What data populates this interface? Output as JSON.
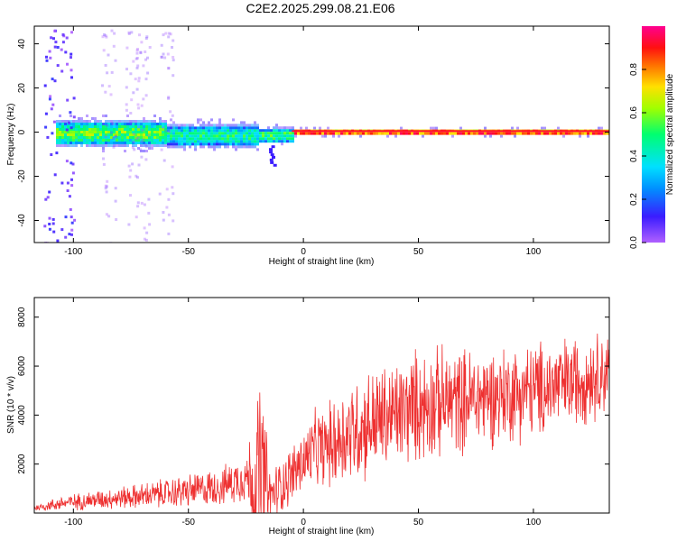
{
  "title": "C2E2.2025.299.08.21.E06",
  "chart_data": [
    {
      "type": "heatmap",
      "xlabel": "Height of straight line (km)",
      "ylabel": "Frequency (Hz)",
      "xlim": [
        -117,
        133
      ],
      "ylim": [
        -50,
        48
      ],
      "xticks": [
        -100,
        -50,
        0,
        50,
        100
      ],
      "yticks": [
        -40,
        -20,
        0,
        20,
        40
      ],
      "colorbar": {
        "label": "Normalized spectral amplitude",
        "range": [
          0,
          1
        ],
        "ticks": [
          "0.0",
          "0.2",
          "0.4",
          "0.6",
          "0.8"
        ],
        "colors": [
          "#a040ff",
          "#3020ff",
          "#00c8ff",
          "#00ff60",
          "#c8ff00",
          "#ffd000",
          "#ff4000",
          "#ff0080"
        ]
      },
      "band": {
        "segments": [
          {
            "x": [
              -108,
              -60
            ],
            "center": 0,
            "halfwidth": 5,
            "peak": 0.55
          },
          {
            "x": [
              -60,
              -20
            ],
            "center": -1,
            "halfwidth": 4.5,
            "peak": 0.45
          },
          {
            "x": [
              -20,
              -5
            ],
            "center": -1,
            "halfwidth": 3,
            "peak": 0.5
          },
          {
            "x": [
              -5,
              133
            ],
            "center": 0.5,
            "halfwidth": 1.2,
            "peak": 0.95
          }
        ],
        "noise_columns_x": [
          -110,
          -103,
          -85,
          -75,
          -70,
          -60
        ]
      }
    },
    {
      "type": "line",
      "xlabel": "Height of straight line (km)",
      "ylabel": "SNR (10 * v/v)",
      "xlim": [
        -117,
        133
      ],
      "ylim": [
        0,
        8800
      ],
      "xticks": [
        -100,
        -50,
        0,
        50,
        100
      ],
      "yticks": [
        2000,
        4000,
        6000,
        8000
      ],
      "series": [
        {
          "color": "#ee3030",
          "envelope": {
            "x": [
              -117,
              -105,
              -90,
              -70,
              -50,
              -35,
              -25,
              -21,
              -19,
              -17,
              -15,
              -12,
              -5,
              0,
              5,
              10,
              15,
              20,
              30,
              40,
              50,
              60,
              75,
              90,
              100,
              115,
              125,
              133
            ],
            "base": [
              200,
              400,
              550,
              700,
              900,
              1100,
              1500,
              1200,
              1800,
              1400,
              700,
              900,
              1600,
              2100,
              2600,
              2700,
              3000,
              3300,
              3700,
              4000,
              4400,
              4500,
              4700,
              4900,
              5000,
              5300,
              5600,
              5800
            ],
            "amp": [
              150,
              350,
              450,
              600,
              800,
              900,
              1200,
              3500,
              4500,
              4000,
              1200,
              1300,
              1400,
              1600,
              1800,
              1900,
              2300,
              2500,
              2600,
              2600,
              2700,
              2600,
              2400,
              2300,
              2300,
              2200,
              2100,
              2000
            ]
          }
        }
      ]
    }
  ]
}
